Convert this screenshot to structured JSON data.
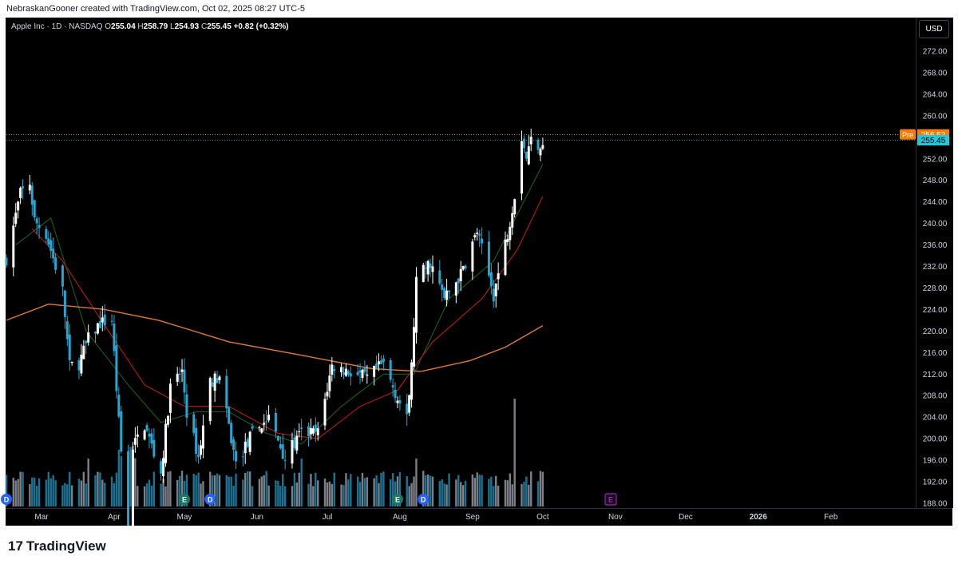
{
  "credit": "NebraskanGooner created with TradingView.com, Oct 02, 2025 08:27 UTC-5",
  "legend": {
    "symbol": "Apple Inc · 1D · NASDAQ",
    "open_label": "O",
    "open": "255.04",
    "high_label": "H",
    "high": "258.79",
    "low_label": "L",
    "low": "254.93",
    "close_label": "C",
    "close": "255.45",
    "change": "+0.82 (+0.32%)"
  },
  "currency_button": "USD",
  "brand": {
    "logo": "17",
    "name": "TradingView"
  },
  "price_tags": {
    "pre_label": "Pre",
    "pre_value": "256.52",
    "last_value": "255.45"
  },
  "colors": {
    "background": "#000000",
    "up": "#ffffff",
    "down": "#26a6d1",
    "ema_fast": "#1b5e20",
    "ema_mid": "#b71c1c",
    "sma_slow": "#e07a30",
    "pre_tag": "#f57c00",
    "last_tag": "#26c6da",
    "event_earnings": "#1b7a63",
    "event_dividend": "#2962ff",
    "event_future": "#9c27b0"
  },
  "chart_data": {
    "type": "candlestick",
    "title": "",
    "ylabel": "",
    "xlabel": "",
    "ylim": [
      186,
      276
    ],
    "y_ticks": [
      "272.00",
      "268.00",
      "264.00",
      "260.00",
      "252.00",
      "248.00",
      "244.00",
      "240.00",
      "236.00",
      "232.00",
      "228.00",
      "224.00",
      "220.00",
      "216.00",
      "212.00",
      "208.00",
      "204.00",
      "200.00",
      "196.00",
      "192.00",
      "188.00"
    ],
    "x_ticks": [
      "Mar",
      "Apr",
      "May",
      "Jun",
      "Jul",
      "Aug",
      "Sep",
      "Oct",
      "Nov",
      "Dec",
      "2026",
      "Feb"
    ],
    "price_path": [
      [
        "2025-02-14",
        233.5
      ],
      [
        "2025-02-20",
        245.5
      ],
      [
        "2025-02-24",
        247.5
      ],
      [
        "2025-02-26",
        240.5
      ],
      [
        "2025-03-03",
        238.0
      ],
      [
        "2025-03-10",
        227.5
      ],
      [
        "2025-03-13",
        213.5
      ],
      [
        "2025-03-17",
        214.0
      ],
      [
        "2025-03-21",
        218.5
      ],
      [
        "2025-03-26",
        221.5
      ],
      [
        "2025-03-31",
        222.0
      ],
      [
        "2025-04-03",
        203.0
      ],
      [
        "2025-04-08",
        172.5
      ],
      [
        "2025-04-09",
        198.5
      ],
      [
        "2025-04-14",
        202.5
      ],
      [
        "2025-04-21",
        193.5
      ],
      [
        "2025-04-25",
        209.5
      ],
      [
        "2025-04-30",
        212.5
      ],
      [
        "2025-05-02",
        205.0
      ],
      [
        "2025-05-07",
        196.5
      ],
      [
        "2025-05-12",
        210.8
      ],
      [
        "2025-05-16",
        211.3
      ],
      [
        "2025-05-23",
        195.3
      ],
      [
        "2025-05-30",
        200.9
      ],
      [
        "2025-06-06",
        203.9
      ],
      [
        "2025-06-13",
        196.5
      ],
      [
        "2025-06-20",
        201.0
      ],
      [
        "2025-06-27",
        201.1
      ],
      [
        "2025-07-03",
        213.5
      ],
      [
        "2025-07-10",
        212.5
      ],
      [
        "2025-07-18",
        211.2
      ],
      [
        "2025-07-25",
        213.9
      ],
      [
        "2025-07-31",
        207.6
      ],
      [
        "2025-08-04",
        203.4
      ],
      [
        "2025-08-06",
        213.3
      ],
      [
        "2025-08-08",
        229.4
      ],
      [
        "2025-08-14",
        232.8
      ],
      [
        "2025-08-20",
        226.0
      ],
      [
        "2025-08-27",
        230.5
      ],
      [
        "2025-09-03",
        238.5
      ],
      [
        "2025-09-10",
        226.8
      ],
      [
        "2025-09-16",
        238.2
      ],
      [
        "2025-09-19",
        245.5
      ],
      [
        "2025-09-22",
        256.1
      ],
      [
        "2025-09-24",
        252.3
      ],
      [
        "2025-09-26",
        255.5
      ],
      [
        "2025-09-30",
        254.6
      ],
      [
        "2025-10-01",
        255.45
      ]
    ],
    "series": [
      {
        "name": "",
        "type": "ema",
        "color": "#1b5e20",
        "points": [
          [
            "2025-02-18",
            236
          ],
          [
            "2025-03-05",
            241
          ],
          [
            "2025-03-20",
            220
          ],
          [
            "2025-04-07",
            210
          ],
          [
            "2025-04-21",
            203
          ],
          [
            "2025-05-06",
            205
          ],
          [
            "2025-05-20",
            205
          ],
          [
            "2025-06-05",
            201
          ],
          [
            "2025-06-20",
            199
          ],
          [
            "2025-07-07",
            206
          ],
          [
            "2025-07-25",
            212
          ],
          [
            "2025-08-07",
            212
          ],
          [
            "2025-08-22",
            226
          ],
          [
            "2025-09-10",
            233
          ],
          [
            "2025-09-24",
            245
          ],
          [
            "2025-10-01",
            251
          ]
        ]
      },
      {
        "name": "",
        "type": "ema",
        "color": "#b71c1c",
        "points": [
          [
            "2025-02-25",
            239
          ],
          [
            "2025-03-10",
            233
          ],
          [
            "2025-03-25",
            223
          ],
          [
            "2025-04-14",
            210
          ],
          [
            "2025-05-01",
            206
          ],
          [
            "2025-05-20",
            206
          ],
          [
            "2025-06-10",
            201
          ],
          [
            "2025-06-27",
            200
          ],
          [
            "2025-07-15",
            206
          ],
          [
            "2025-07-31",
            209
          ],
          [
            "2025-08-15",
            218
          ],
          [
            "2025-09-05",
            226
          ],
          [
            "2025-09-20",
            235
          ],
          [
            "2025-10-01",
            245
          ]
        ]
      },
      {
        "name": "",
        "type": "sma",
        "color": "#e07a30",
        "points": [
          [
            "2025-02-14",
            222.0
          ],
          [
            "2025-03-04",
            225.0
          ],
          [
            "2025-03-28",
            224.0
          ],
          [
            "2025-04-20",
            222.0
          ],
          [
            "2025-05-20",
            218.0
          ],
          [
            "2025-06-20",
            215.5
          ],
          [
            "2025-07-20",
            213.0
          ],
          [
            "2025-08-10",
            212.5
          ],
          [
            "2025-08-31",
            214.5
          ],
          [
            "2025-09-15",
            217.0
          ],
          [
            "2025-10-01",
            221.0
          ]
        ]
      }
    ],
    "volume_note": "relative volume bars, spike around 2025-04-08 and 2025-09-19",
    "events": [
      {
        "date": "2025-02-14",
        "kind": "dividend",
        "label": "D"
      },
      {
        "date": "2025-05-01",
        "kind": "earnings",
        "label": "E"
      },
      {
        "date": "2025-05-12",
        "kind": "dividend",
        "label": "D"
      },
      {
        "date": "2025-07-31",
        "kind": "earnings",
        "label": "E"
      },
      {
        "date": "2025-08-11",
        "kind": "dividend",
        "label": "D"
      },
      {
        "date": "2025-10-30",
        "kind": "earnings-future",
        "label": "E"
      }
    ],
    "grid": false,
    "legend_position": "top-left"
  }
}
